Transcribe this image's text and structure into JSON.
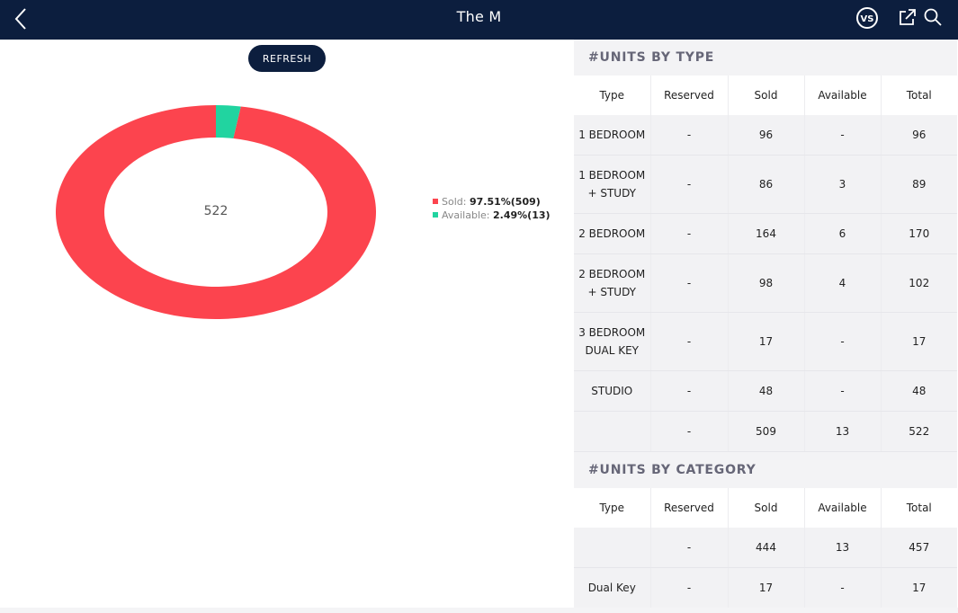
{
  "header": {
    "title": "The M",
    "vs_label": "VS"
  },
  "refresh_label": "REFRESH",
  "chart_data": {
    "type": "pie",
    "donut": true,
    "center_label": "522",
    "slices": [
      {
        "name": "Sold",
        "value": 509,
        "percent": "97.51%",
        "color": "#fc444e"
      },
      {
        "name": "Available",
        "value": 13,
        "percent": "2.49%",
        "color": "#21d4a0"
      }
    ],
    "legend": [
      {
        "label": "Sold:",
        "value": "97.51%(509)",
        "color": "#fc444e"
      },
      {
        "label": "Available:",
        "value": "2.49%(13)",
        "color": "#21d4a0"
      }
    ],
    "legend_position": "right"
  },
  "units_by_type": {
    "title": "#UNITS BY TYPE",
    "columns": [
      "Type",
      "Reserved",
      "Sold",
      "Available",
      "Total"
    ],
    "rows": [
      [
        "1 BEDROOM",
        "-",
        "96",
        "-",
        "96"
      ],
      [
        "1 BEDROOM + STUDY",
        "-",
        "86",
        "3",
        "89"
      ],
      [
        "2 BEDROOM",
        "-",
        "164",
        "6",
        "170"
      ],
      [
        "2 BEDROOM + STUDY",
        "-",
        "98",
        "4",
        "102"
      ],
      [
        "3 BEDROOM DUAL KEY",
        "-",
        "17",
        "-",
        "17"
      ],
      [
        "STUDIO",
        "-",
        "48",
        "-",
        "48"
      ],
      [
        "",
        "-",
        "509",
        "13",
        "522"
      ]
    ]
  },
  "units_by_category": {
    "title": "#UNITS BY CATEGORY",
    "columns": [
      "Type",
      "Reserved",
      "Sold",
      "Available",
      "Total"
    ],
    "rows": [
      [
        "",
        "-",
        "444",
        "13",
        "457"
      ],
      [
        "Dual Key",
        "-",
        "17",
        "-",
        "17"
      ]
    ]
  }
}
